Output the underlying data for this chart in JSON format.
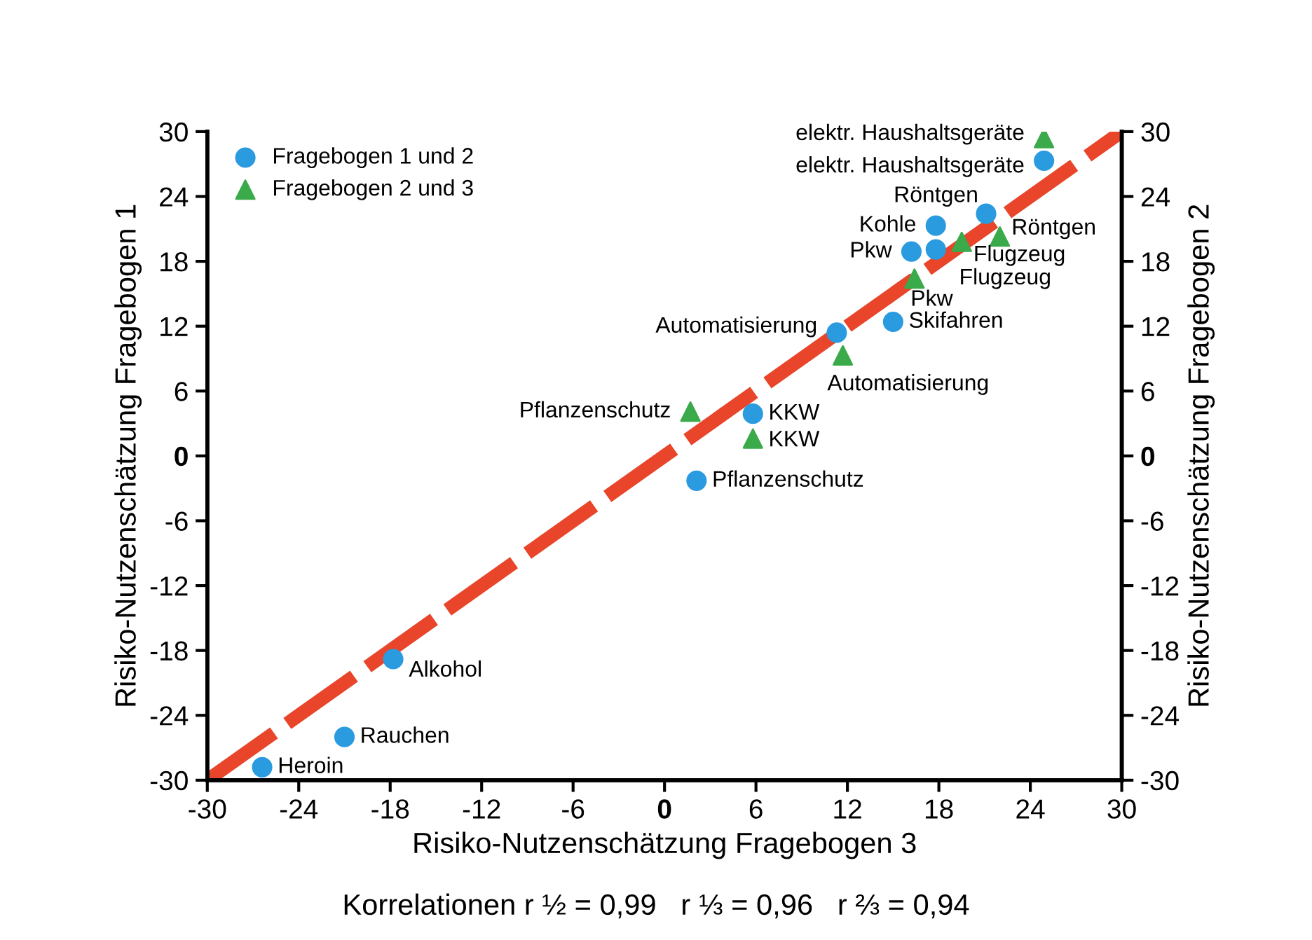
{
  "chart_data": {
    "type": "scatter",
    "xlabel": "Risiko-Nutzenschätzung Fragebogen 3",
    "ylabel": "Risiko-Nutzenschätzung Fragebogen 1",
    "y2label": "Risiko-Nutzenschätzung Fragebogen 2",
    "xlim": [
      -30,
      30
    ],
    "ylim": [
      -30,
      30
    ],
    "y2lim": [
      -30,
      30
    ],
    "xticks": [
      -30,
      -24,
      -18,
      -12,
      -6,
      0,
      6,
      12,
      18,
      24,
      30
    ],
    "yticks": [
      -30,
      -24,
      -18,
      -12,
      -6,
      0,
      6,
      12,
      18,
      24,
      30
    ],
    "y2ticks": [
      -30,
      -24,
      -18,
      -12,
      -6,
      0,
      6,
      12,
      18,
      24,
      30
    ],
    "grid": false,
    "legend": "top left",
    "series": [
      {
        "type": "line",
        "color": "#e8452a",
        "x": [
          -30,
          30
        ],
        "values": [
          -30,
          30
        ],
        "marker": "none",
        "line_style": "dashed"
      },
      {
        "name": "Fragebogen 1 und 2",
        "color": "#2b9be0",
        "marker": "circle",
        "x": [
          24.9,
          21.1,
          17.8,
          16.2,
          17.8,
          11.3,
          15.0,
          5.8,
          2.1,
          -17.8,
          -21.0,
          -26.4
        ],
        "values": [
          27.3,
          22.4,
          21.3,
          18.9,
          19.1,
          11.4,
          12.4,
          3.9,
          -2.3,
          -18.8,
          -26.0,
          -28.8
        ]
      },
      {
        "name": "Fragebogen 2 und 3",
        "color": "#3aaa4a",
        "marker": "triangle",
        "x": [
          24.9,
          22.0,
          19.5,
          16.4,
          11.7,
          1.7,
          5.8
        ],
        "values": [
          29.4,
          20.3,
          19.8,
          16.4,
          9.3,
          4.1,
          1.6
        ]
      }
    ],
    "annotations": [
      {
        "text": "elektr. Haushaltsgeräte",
        "x": 24.9,
        "y": 27.3
      },
      {
        "text": "Röntgen",
        "x": 21.1,
        "y": 22.4
      },
      {
        "text": "Kohle",
        "x": 17.8,
        "y": 21.3
      },
      {
        "text": "Pkw",
        "x": 16.2,
        "y": 18.9
      },
      {
        "text": "Flugzeug",
        "x": 17.8,
        "y": 19.1
      },
      {
        "text": "Automatisierung",
        "x": 11.3,
        "y": 11.4
      },
      {
        "text": "Skifahren",
        "x": 15.0,
        "y": 12.4
      },
      {
        "text": "KKW",
        "x": 5.8,
        "y": 3.9
      },
      {
        "text": "Pflanzenschutz",
        "x": 2.1,
        "y": -2.3
      },
      {
        "text": "Alkohol",
        "x": -17.8,
        "y": -18.8
      },
      {
        "text": "Rauchen",
        "x": -21.0,
        "y": -26.0
      },
      {
        "text": "Heroin",
        "x": -26.4,
        "y": -28.8
      },
      {
        "text": "elektr. Haushaltsgeräte",
        "x": 24.9,
        "y": 29.4
      },
      {
        "text": "Röntgen",
        "x": 22.0,
        "y": 20.3
      },
      {
        "text": "Flugzeug",
        "x": 19.5,
        "y": 19.8
      },
      {
        "text": "Pkw",
        "x": 16.4,
        "y": 16.4
      },
      {
        "text": "Automatisierung",
        "x": 11.7,
        "y": 9.3
      },
      {
        "text": "Pflanzenschutz",
        "x": 1.7,
        "y": 4.1
      },
      {
        "text": "KKW",
        "x": 5.8,
        "y": 1.6
      },
      "Korrelationen r ½ = 0,99   r ⅓ = 0,96   r ⅔ = 0,94"
    ]
  }
}
